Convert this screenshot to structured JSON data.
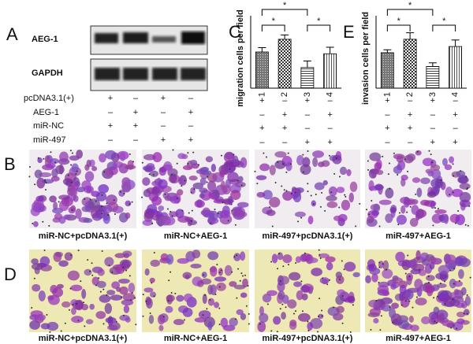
{
  "panel_labels": [
    "A",
    "B",
    "C",
    "D",
    "E"
  ],
  "blot": {
    "bands": [
      "AEG-1",
      "GAPDH"
    ],
    "conditions": [
      {
        "label": "pcDNA3.1(+)",
        "signs": [
          "+",
          "–",
          "+",
          "–"
        ]
      },
      {
        "label": "AEG-1",
        "signs": [
          "–",
          "+",
          "–",
          "+"
        ]
      },
      {
        "label": "miR-NC",
        "signs": [
          "+",
          "+",
          "–",
          "–"
        ]
      },
      {
        "label": "miR-497",
        "signs": [
          "–",
          "–",
          "+",
          "+"
        ]
      }
    ]
  },
  "chart_data": [
    {
      "type": "bar",
      "ylabel": "migration cells per field",
      "categories": [
        "1",
        "2",
        "3",
        "4"
      ],
      "values": [
        100,
        135,
        57,
        95
      ],
      "errors": [
        12,
        12,
        18,
        18
      ],
      "ylim": [
        0,
        200
      ],
      "annotations": [
        "*",
        "*",
        "*"
      ],
      "conditions": [
        [
          "+",
          "–",
          "+",
          "–"
        ],
        [
          "–",
          "+",
          "–",
          "+"
        ],
        [
          "+",
          "+",
          "–",
          "–"
        ],
        [
          "–",
          "–",
          "+",
          "+"
        ]
      ]
    },
    {
      "type": "bar",
      "ylabel": "invasion cells per field",
      "categories": [
        "1",
        "2",
        "3",
        "4"
      ],
      "values": [
        98,
        135,
        60,
        115
      ],
      "errors": [
        8,
        18,
        10,
        18
      ],
      "ylim": [
        0,
        200
      ],
      "annotations": [
        "*",
        "*",
        "*"
      ],
      "conditions": [
        [
          "+",
          "–",
          "+",
          "–"
        ],
        [
          "–",
          "+",
          "–",
          "+"
        ],
        [
          "+",
          "+",
          "–",
          "–"
        ],
        [
          "–",
          "–",
          "+",
          "+"
        ]
      ]
    }
  ],
  "micrograph_rows": [
    [
      "miR-NC+pcDNA3.1(+)",
      "miR-NC+AEG-1",
      "miR-497+pcDNA3.1(+)",
      "miR-497+AEG-1"
    ],
    [
      "miR-NC+pcDNA3.1(+)",
      "miR-NC+AEG-1",
      "miR-497+pcDNA3.1(+)",
      "miR-497+AEG-1"
    ]
  ]
}
